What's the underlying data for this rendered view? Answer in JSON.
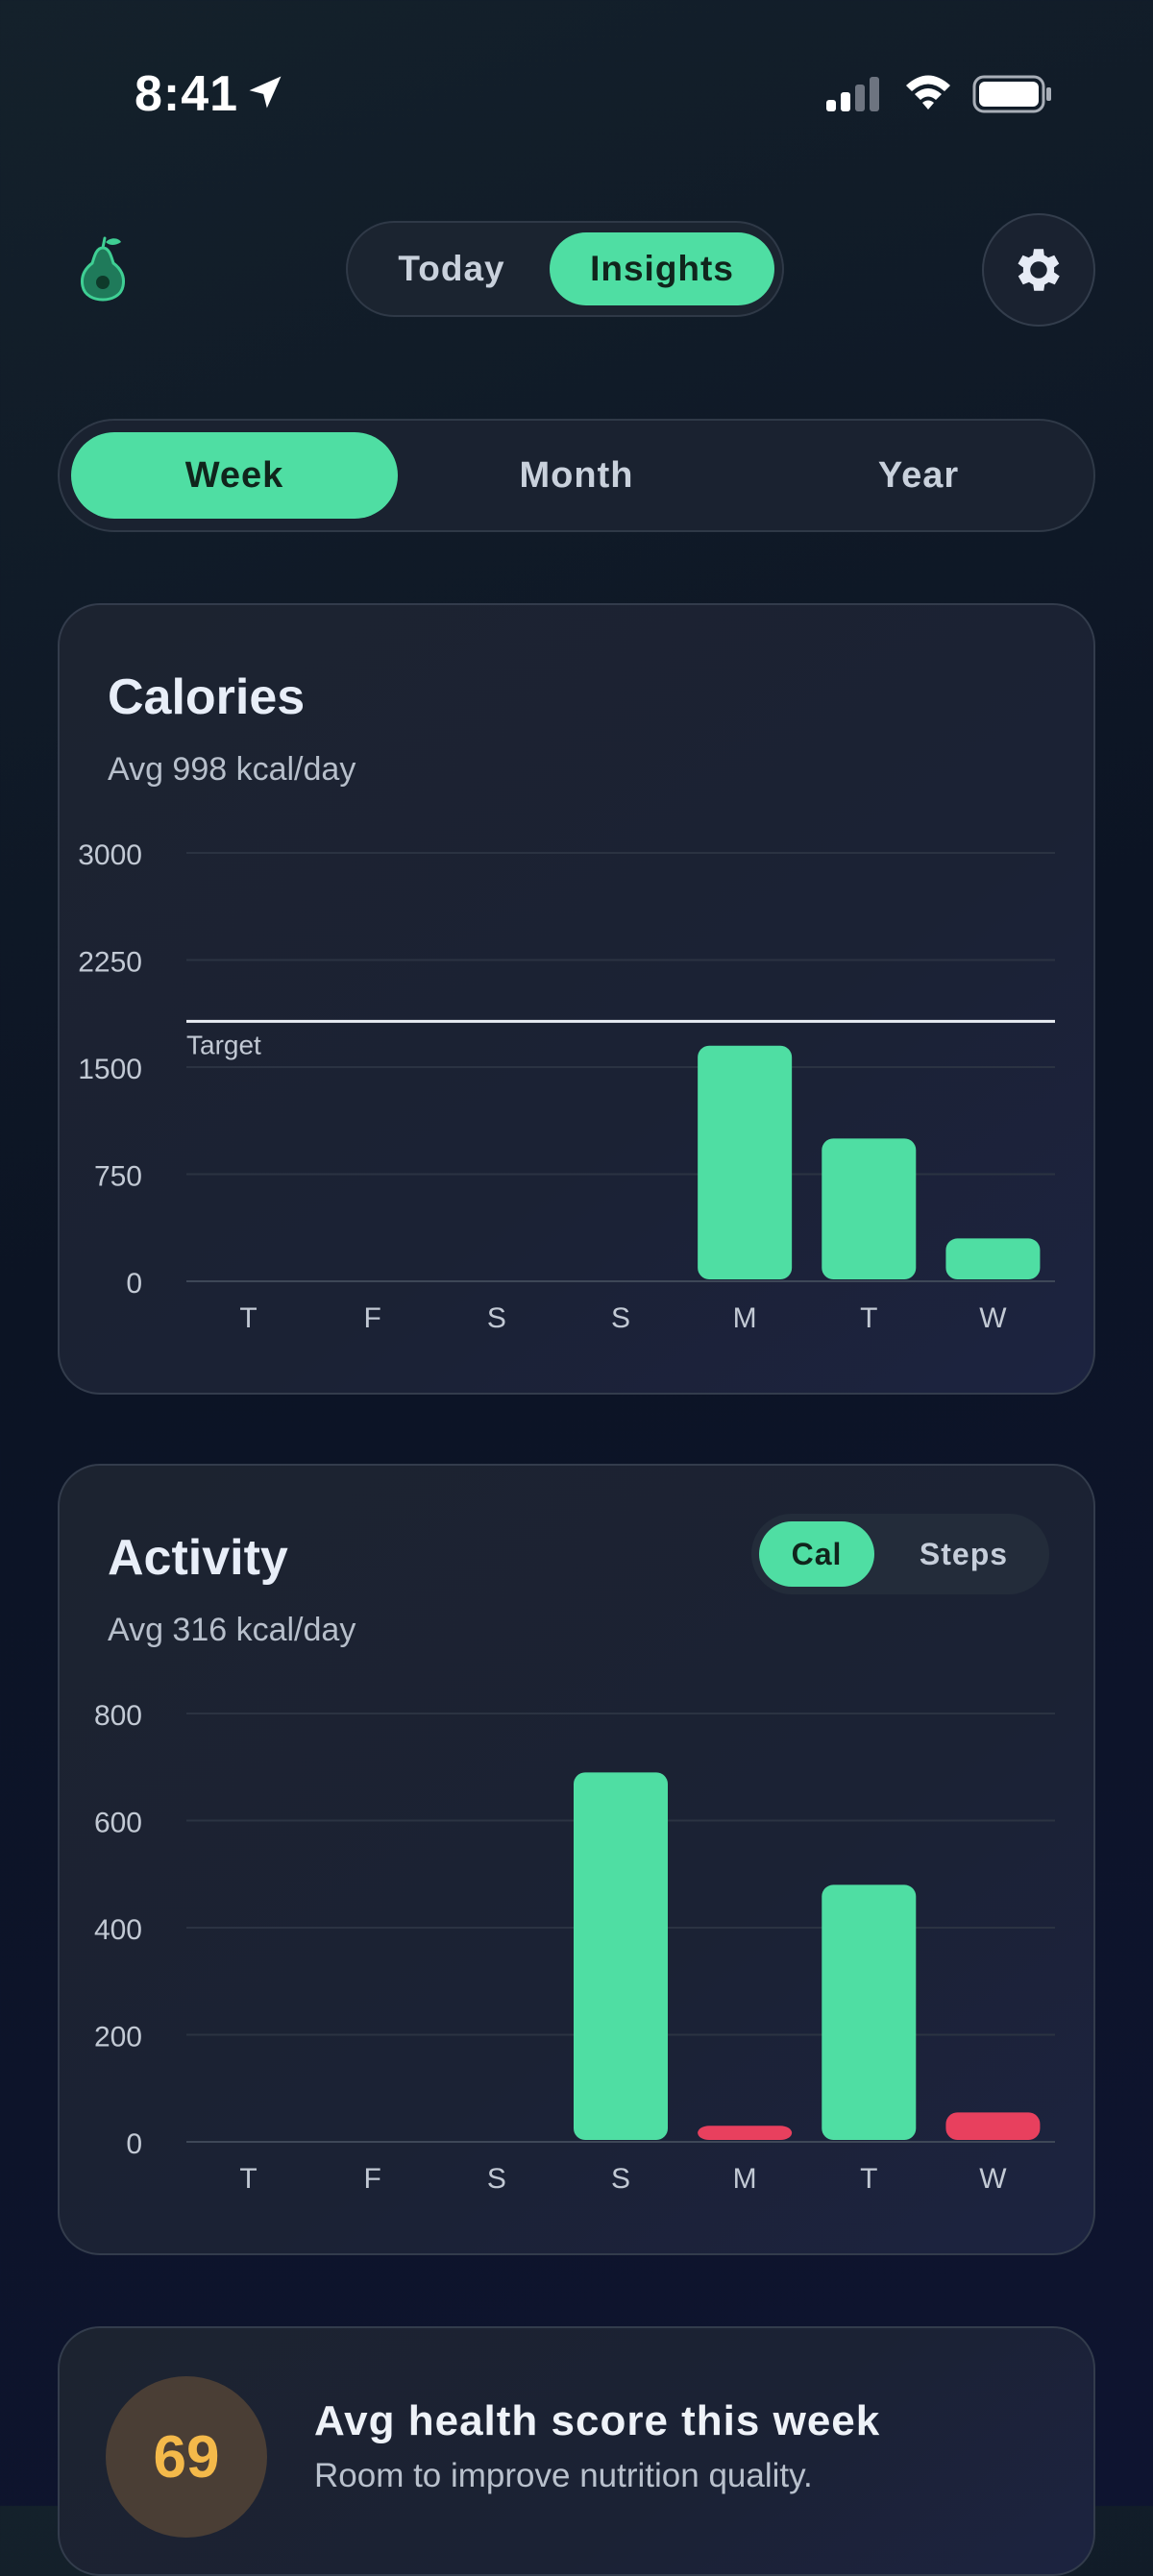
{
  "status_bar": {
    "time": "8:41"
  },
  "header": {
    "tabs": [
      {
        "label": "Today",
        "active": false
      },
      {
        "label": "Insights",
        "active": true
      }
    ]
  },
  "range": {
    "options": [
      {
        "label": "Week",
        "active": true
      },
      {
        "label": "Month",
        "active": false
      },
      {
        "label": "Year",
        "active": false
      }
    ]
  },
  "calories": {
    "title": "Calories",
    "subtitle": "Avg 998 kcal/day",
    "target_label": "Target"
  },
  "activity": {
    "title": "Activity",
    "subtitle": "Avg 316 kcal/day",
    "toggle": [
      {
        "label": "Cal",
        "active": true
      },
      {
        "label": "Steps",
        "active": false
      }
    ]
  },
  "health": {
    "score": "69",
    "title": "Avg health score this week",
    "subtitle": "Room to improve nutrition quality."
  },
  "colors": {
    "accent": "#4fdea3",
    "negative": "#e8405e",
    "score": "#f4b94a"
  },
  "chart_data": [
    {
      "type": "bar",
      "categories": [
        "T",
        "F",
        "S",
        "S",
        "M",
        "T",
        "W"
      ],
      "series": [
        {
          "values": [
            0,
            0,
            0,
            0,
            1650,
            1000,
            300
          ]
        }
      ],
      "yticks": [
        "3000",
        "2250",
        "1500",
        "750",
        "0"
      ],
      "ylim": [
        0,
        3000
      ],
      "target": 1820,
      "grid": true
    },
    {
      "type": "bar",
      "categories": [
        "T",
        "F",
        "S",
        "S",
        "M",
        "T",
        "W"
      ],
      "series": [
        {
          "values": [
            0,
            0,
            0,
            690,
            30,
            480,
            55
          ]
        }
      ],
      "negative_flags": [
        false,
        false,
        false,
        false,
        true,
        false,
        true
      ],
      "yticks": [
        "800",
        "600",
        "400",
        "200",
        "0"
      ],
      "ylim": [
        0,
        800
      ],
      "grid": true
    }
  ]
}
